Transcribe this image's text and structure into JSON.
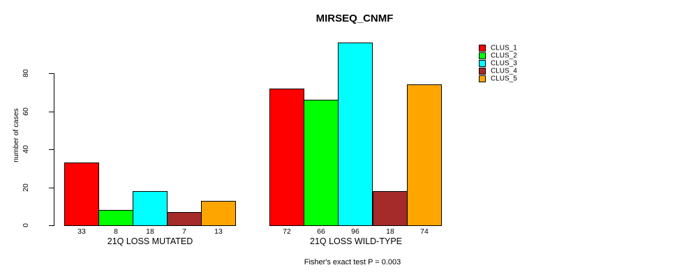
{
  "chart_data": {
    "type": "bar",
    "title": "MIRSEQ_CNMF",
    "ylabel": "number of cases",
    "xlabel": "",
    "ylim": [
      0,
      80
    ],
    "yticks": [
      0,
      20,
      40,
      60,
      80
    ],
    "grid": false,
    "categories": [
      "21Q LOSS MUTATED",
      "21Q LOSS WILD-TYPE"
    ],
    "series": [
      {
        "name": "CLUS_1",
        "color": "#FF0000",
        "values": [
          33,
          72
        ]
      },
      {
        "name": "CLUS_2",
        "color": "#00FF00",
        "values": [
          8,
          66
        ]
      },
      {
        "name": "CLUS_3",
        "color": "#00FFFF",
        "values": [
          18,
          96
        ]
      },
      {
        "name": "CLUS_4",
        "color": "#A52A2A",
        "values": [
          7,
          18
        ]
      },
      {
        "name": "CLUS_5",
        "color": "#FFA500",
        "values": [
          13,
          74
        ]
      }
    ],
    "bar_value_labels": [
      [
        "33",
        "8",
        "18",
        "7",
        "13"
      ],
      [
        "72",
        "66",
        "96",
        "18",
        "74"
      ]
    ],
    "legend": {
      "position": "right",
      "entries": [
        "CLUS_1",
        "CLUS_2",
        "CLUS_3",
        "CLUS_4",
        "CLUS_5"
      ]
    },
    "caption": "Fisher's exact test P = 0.003"
  }
}
